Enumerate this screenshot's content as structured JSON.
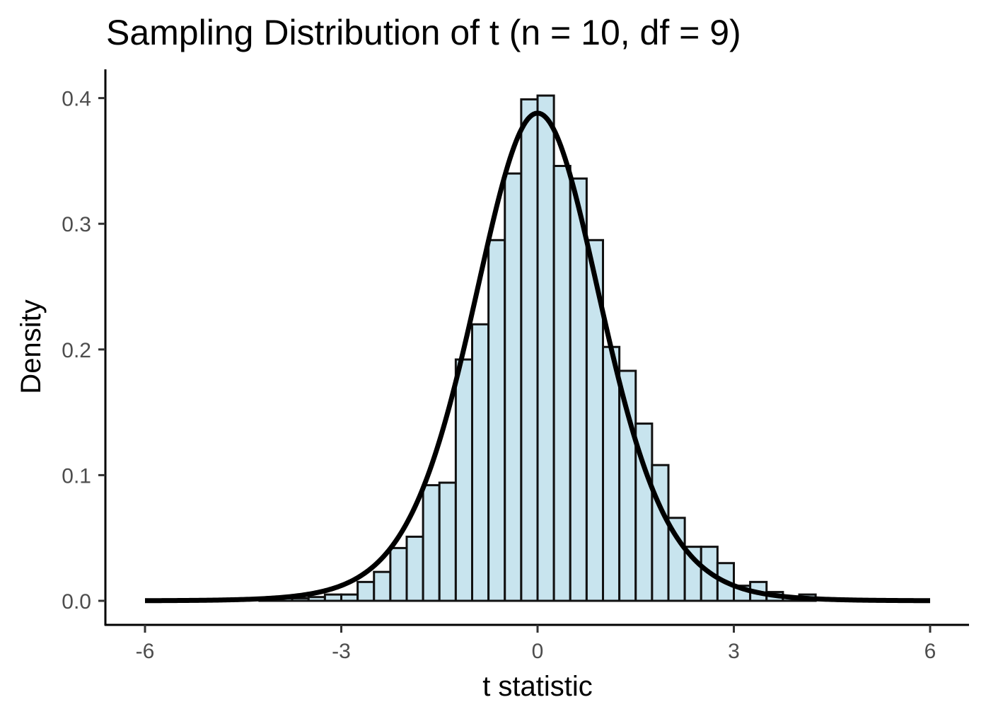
{
  "chart_data": {
    "type": "bar",
    "title": "Sampling Distribution of t (n = 10, df = 9)",
    "xlabel": "t statistic",
    "ylabel": "Density",
    "xlim": [
      -6.2,
      6.5
    ],
    "ylim": [
      -0.02,
      0.42
    ],
    "x_ticks": [
      -6,
      -3,
      0,
      3,
      6
    ],
    "x_tick_labels": [
      "-6",
      "-3",
      "0",
      "3",
      "6"
    ],
    "y_ticks": [
      0.0,
      0.1,
      0.2,
      0.3,
      0.4
    ],
    "y_tick_labels": [
      "0.0",
      "0.1",
      "0.2",
      "0.3",
      "0.4"
    ],
    "grid": false,
    "bin_width": 0.25,
    "series": [
      {
        "kind": "histogram",
        "fill": "#c8e4ee",
        "stroke": "#111111",
        "bins": [
          {
            "x0": -4.25,
            "x1": -4.0,
            "y": 0.001
          },
          {
            "x0": -4.0,
            "x1": -3.75,
            "y": 0.002
          },
          {
            "x0": -3.75,
            "x1": -3.5,
            "y": 0.002
          },
          {
            "x0": -3.5,
            "x1": -3.25,
            "y": 0.003
          },
          {
            "x0": -3.25,
            "x1": -3.0,
            "y": 0.005
          },
          {
            "x0": -3.0,
            "x1": -2.75,
            "y": 0.005
          },
          {
            "x0": -2.75,
            "x1": -2.5,
            "y": 0.015
          },
          {
            "x0": -2.5,
            "x1": -2.25,
            "y": 0.023
          },
          {
            "x0": -2.25,
            "x1": -2.0,
            "y": 0.042
          },
          {
            "x0": -2.0,
            "x1": -1.75,
            "y": 0.051
          },
          {
            "x0": -1.75,
            "x1": -1.5,
            "y": 0.092
          },
          {
            "x0": -1.5,
            "x1": -1.25,
            "y": 0.094
          },
          {
            "x0": -1.25,
            "x1": -1.0,
            "y": 0.192
          },
          {
            "x0": -1.0,
            "x1": -0.75,
            "y": 0.22
          },
          {
            "x0": -0.75,
            "x1": -0.5,
            "y": 0.287
          },
          {
            "x0": -0.5,
            "x1": -0.25,
            "y": 0.34
          },
          {
            "x0": -0.25,
            "x1": 0.0,
            "y": 0.399
          },
          {
            "x0": 0.0,
            "x1": 0.25,
            "y": 0.402
          },
          {
            "x0": 0.25,
            "x1": 0.5,
            "y": 0.346
          },
          {
            "x0": 0.5,
            "x1": 0.75,
            "y": 0.336
          },
          {
            "x0": 0.75,
            "x1": 1.0,
            "y": 0.287
          },
          {
            "x0": 1.0,
            "x1": 1.25,
            "y": 0.202
          },
          {
            "x0": 1.25,
            "x1": 1.5,
            "y": 0.183
          },
          {
            "x0": 1.5,
            "x1": 1.75,
            "y": 0.141
          },
          {
            "x0": 1.75,
            "x1": 2.0,
            "y": 0.108
          },
          {
            "x0": 2.0,
            "x1": 2.25,
            "y": 0.066
          },
          {
            "x0": 2.25,
            "x1": 2.5,
            "y": 0.043
          },
          {
            "x0": 2.5,
            "x1": 2.75,
            "y": 0.043
          },
          {
            "x0": 2.75,
            "x1": 3.0,
            "y": 0.03
          },
          {
            "x0": 3.0,
            "x1": 3.25,
            "y": 0.012
          },
          {
            "x0": 3.25,
            "x1": 3.5,
            "y": 0.015
          },
          {
            "x0": 3.5,
            "x1": 3.75,
            "y": 0.007
          },
          {
            "x0": 3.75,
            "x1": 4.0,
            "y": 0.003
          },
          {
            "x0": 4.0,
            "x1": 4.25,
            "y": 0.005
          }
        ]
      },
      {
        "kind": "density-line",
        "color": "#000000",
        "distribution": "t",
        "df": 9,
        "x_range": [
          -6,
          6
        ]
      }
    ]
  }
}
